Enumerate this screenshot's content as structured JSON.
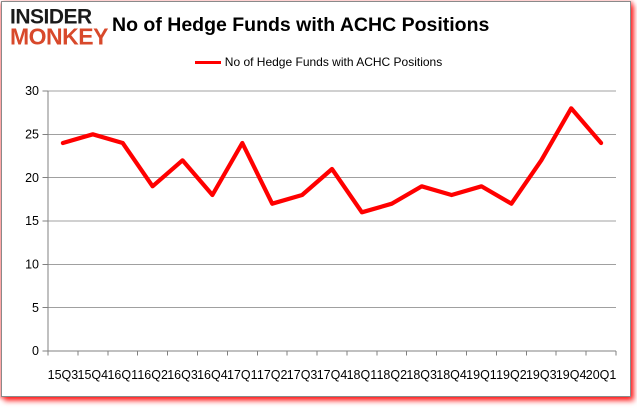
{
  "logo": {
    "line1": "INSIDER",
    "line2": "MONKEY"
  },
  "header": {
    "title": "No of Hedge Funds with ACHC Positions"
  },
  "legend": {
    "label": "No of Hedge Funds with ACHC Positions"
  },
  "colors": {
    "line": "#ff0000",
    "logo_red": "#d8492b",
    "grid": "#a0a0a0",
    "axis": "#808080",
    "text": "#000000"
  },
  "chart_data": {
    "type": "line",
    "title": "No of Hedge Funds with ACHC Positions",
    "categories": [
      "15Q3",
      "15Q4",
      "16Q1",
      "16Q2",
      "16Q3",
      "16Q4",
      "17Q1",
      "17Q2",
      "17Q3",
      "17Q4",
      "18Q1",
      "18Q2",
      "18Q3",
      "18Q4",
      "19Q1",
      "19Q2",
      "19Q3",
      "19Q4",
      "20Q1"
    ],
    "series": [
      {
        "name": "No of Hedge Funds with ACHC Positions",
        "color": "#ff0000",
        "values": [
          24,
          25,
          24,
          19,
          22,
          18,
          24,
          17,
          18,
          21,
          16,
          17,
          19,
          18,
          19,
          17,
          22,
          28,
          24
        ]
      }
    ],
    "xlabel": "",
    "ylabel": "",
    "ylim": [
      0,
      30
    ],
    "ytick_step": 5,
    "grid": true,
    "legend_position": "top-center"
  }
}
